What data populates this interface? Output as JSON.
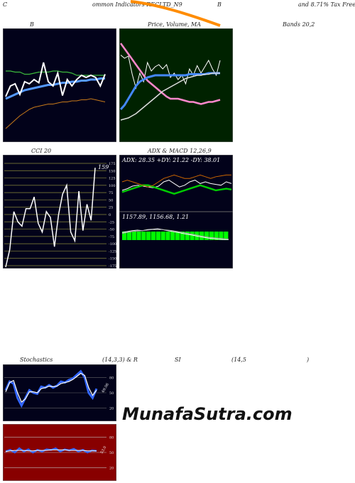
{
  "header": {
    "left": "C",
    "text1": "ommon Indicators RECLTD_N9",
    "mid": "B",
    "right": "and 8.71% Tax Free  SEC"
  },
  "labels": {
    "bands_left": "B",
    "price_ma": "Price, Volume, MA",
    "bands_right": "Bands 20,2",
    "cci": "CCI 20",
    "adx_macd": "ADX  & MACD 12,26,9",
    "stoch_a": "Stochastics",
    "stoch_b": "(14,3,3) & R",
    "stoch_c": "SI",
    "stoch_d": "(14,5",
    "stoch_e": ")"
  },
  "watermark": "MunafaSutra.com",
  "colors": {
    "dark_panel": "#02021a",
    "ma_panel": "#002200",
    "rsi_panel": "#880000",
    "header_line": "#ff8c00"
  },
  "chart_data": [
    {
      "type": "line",
      "name": "bollinger",
      "series": [
        {
          "name": "upper",
          "color": "#3dbb3d",
          "values": [
            64,
            64,
            63,
            63,
            61,
            61,
            62,
            63,
            63,
            63,
            64,
            64,
            63,
            63,
            62,
            60,
            60,
            60,
            60,
            60,
            60,
            60
          ]
        },
        {
          "name": "mid",
          "color": "#5599ff",
          "values": [
            38,
            40,
            42,
            44,
            46,
            47,
            48,
            49,
            50,
            51,
            51,
            52,
            53,
            53,
            54,
            54,
            55,
            55,
            56,
            56,
            57,
            57
          ]
        },
        {
          "name": "lower",
          "color": "#c87a1a",
          "values": [
            10,
            14,
            18,
            22,
            25,
            28,
            30,
            31,
            32,
            33,
            33,
            34,
            35,
            35,
            36,
            36,
            37,
            37,
            38,
            37,
            36,
            35
          ]
        },
        {
          "name": "price",
          "color": "#ffffff",
          "values": [
            40,
            50,
            52,
            42,
            54,
            52,
            56,
            53,
            72,
            54,
            50,
            62,
            41,
            56,
            50,
            56,
            60,
            58,
            60,
            58,
            50,
            61
          ]
        }
      ]
    },
    {
      "type": "line",
      "name": "price-volume-ma",
      "series": [
        {
          "name": "price",
          "color": "#ffffff",
          "values": [
            79,
            76,
            78,
            61,
            48,
            62,
            54,
            72,
            64,
            68,
            70,
            66,
            70,
            58,
            62,
            56,
            60,
            52,
            66,
            60,
            69,
            62,
            68,
            74,
            66,
            60,
            74
          ]
        },
        {
          "name": "ma-short",
          "color": "#ff88cc",
          "values": [
            90,
            85,
            80,
            75,
            70,
            65,
            60,
            55,
            52,
            49,
            46,
            43,
            40,
            38,
            38,
            38,
            37,
            36,
            35,
            35,
            34,
            33,
            34,
            35,
            35,
            36,
            37
          ]
        },
        {
          "name": "ma-mid",
          "color": "#4488ff",
          "values": [
            28,
            32,
            38,
            44,
            50,
            54,
            56,
            58,
            59,
            60,
            60,
            60,
            60,
            60,
            60,
            60,
            60,
            60,
            61,
            61,
            61,
            61,
            61,
            62,
            62,
            62,
            62
          ]
        },
        {
          "name": "ma-long",
          "color": "#dddddd",
          "values": [
            18,
            19,
            20,
            22,
            24,
            27,
            30,
            33,
            36,
            39,
            42,
            45,
            47,
            49,
            51,
            53,
            55,
            57,
            58,
            59,
            60,
            60,
            61,
            61,
            62,
            62,
            62
          ]
        }
      ]
    },
    {
      "type": "line",
      "name": "cci",
      "ylim": [
        -175,
        175
      ],
      "ticks": [
        175,
        150,
        125,
        100,
        75,
        50,
        25,
        0,
        -25,
        -50,
        -75,
        -100,
        -125,
        -150,
        -175
      ],
      "value_label": "159",
      "series": [
        {
          "name": "cci",
          "color": "#ffffff",
          "values": [
            -180,
            -120,
            10,
            -25,
            -40,
            20,
            20,
            60,
            -30,
            -60,
            10,
            -10,
            -110,
            0,
            70,
            100,
            -60,
            -90,
            80,
            -55,
            35,
            -20,
            160
          ]
        }
      ]
    },
    {
      "type": "line",
      "name": "adx",
      "adx_text": "ADX: 28.35  +DY: 21.22  -DY: 38.01",
      "series": [
        {
          "name": "adx",
          "color": "#ffffff",
          "values": [
            20,
            22,
            25,
            26,
            25,
            24,
            23,
            25,
            30,
            32,
            28,
            24,
            26,
            30,
            32,
            28,
            30,
            28,
            27,
            26,
            30,
            28
          ]
        },
        {
          "name": "plus-di",
          "color": "#00cc00",
          "values": [
            18,
            20,
            22,
            24,
            26,
            26,
            24,
            22,
            20,
            18,
            16,
            18,
            20,
            22,
            24,
            26,
            24,
            22,
            20,
            21,
            22,
            21
          ]
        },
        {
          "name": "minus-di",
          "color": "#cc6600",
          "values": [
            30,
            32,
            30,
            28,
            26,
            24,
            26,
            30,
            34,
            36,
            38,
            36,
            34,
            34,
            36,
            38,
            36,
            34,
            36,
            37,
            38,
            38
          ]
        }
      ]
    },
    {
      "type": "bar",
      "name": "macd",
      "macd_text": "1157.89,  1156.68,  1.21",
      "series": [
        {
          "name": "macd-line",
          "color": "#ffffff",
          "values": [
            40,
            42,
            44,
            45,
            44,
            46,
            47,
            48,
            46,
            44,
            42,
            40,
            38,
            36,
            34,
            32,
            30,
            28,
            27,
            26,
            25,
            25
          ]
        },
        {
          "name": "signal",
          "color": "#aaaaaa",
          "values": [
            38,
            40,
            42,
            43,
            44,
            45,
            46,
            46,
            46,
            45,
            44,
            42,
            40,
            38,
            36,
            34,
            32,
            30,
            29,
            28,
            27,
            26
          ]
        },
        {
          "name": "histogram",
          "color": "#00ff00",
          "values": [
            2,
            2,
            2,
            2,
            2,
            2,
            2,
            2,
            2,
            2,
            2,
            2,
            2,
            2,
            2,
            2,
            2,
            2,
            2,
            2,
            2,
            2
          ]
        }
      ]
    },
    {
      "type": "line",
      "name": "stochastics",
      "ylim": [
        0,
        100
      ],
      "ticks": [
        80,
        50,
        20
      ],
      "value_label": "69.06",
      "series": [
        {
          "name": "k",
          "color": "#3366ff",
          "values": [
            55,
            72,
            68,
            40,
            25,
            40,
            55,
            50,
            48,
            62,
            60,
            65,
            60,
            64,
            72,
            70,
            75,
            78,
            85,
            92,
            80,
            50,
            40,
            58
          ]
        },
        {
          "name": "d",
          "color": "#ffffff",
          "values": [
            52,
            70,
            74,
            50,
            32,
            38,
            52,
            52,
            50,
            58,
            60,
            63,
            62,
            63,
            68,
            70,
            72,
            76,
            82,
            88,
            84,
            60,
            45,
            55
          ]
        }
      ]
    },
    {
      "type": "line",
      "name": "rsi",
      "ylim": [
        0,
        100
      ],
      "ticks": [
        80,
        50,
        20
      ],
      "value_label": "53.0",
      "series": [
        {
          "name": "rsi",
          "color": "#3366ff",
          "values": [
            52,
            55,
            50,
            58,
            52,
            56,
            50,
            55,
            52,
            56,
            55,
            58,
            52,
            56,
            54,
            57,
            52,
            55,
            50,
            54,
            53
          ]
        },
        {
          "name": "rsi-smooth",
          "color": "#ffffff",
          "values": [
            52,
            53,
            54,
            54,
            54,
            53,
            53,
            54,
            54,
            54,
            55,
            55,
            55,
            55,
            54,
            54,
            54,
            54,
            53,
            53,
            53
          ]
        }
      ]
    }
  ]
}
